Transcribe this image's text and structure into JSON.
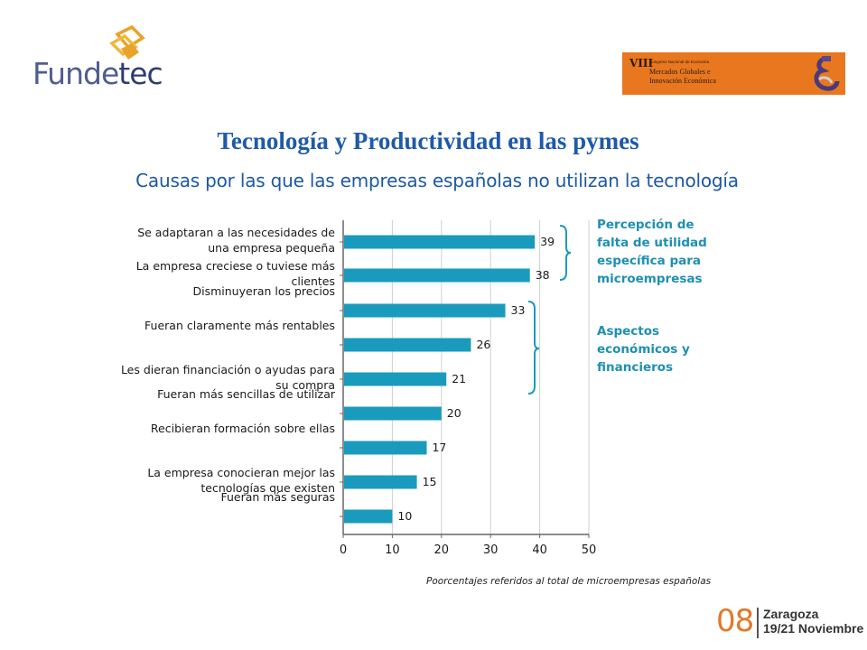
{
  "logo": {
    "text_a": "Funde",
    "text_b": "tec"
  },
  "congress": {
    "roman": "VIII",
    "small": "Congreso Nacional de Economía",
    "line1": "Mercados Globales e",
    "line2": "Innovación Económica"
  },
  "title": "Tecnología y Productividad en las pymes",
  "subtitle": "Causas por las que las empresas españolas no utilizan la tecnología",
  "chart_data": {
    "type": "bar",
    "orientation": "horizontal",
    "categories": [
      "Se adaptaran a las necesidades de una empresa pequeña",
      "La empresa creciese o tuviese más clientes",
      "Disminuyeran los precios",
      "Fueran claramente más rentables",
      "Les dieran financiación o ayudas para su compra",
      "Fueran más sencillas de utilizar",
      "Recibieran formación sobre ellas",
      "La empresa conocieran mejor las tecnologías que existen",
      "Fueran más seguras"
    ],
    "category_lines": [
      "Se adaptaran a las necesidades de\nuna empresa pequeña",
      "La empresa creciese o tuviese más\nclientes",
      "Disminuyeran los precios",
      "Fueran claramente más rentables",
      "Les dieran financiación o ayudas para\nsu compra",
      "Fueran más sencillas de utilizar",
      "Recibieran formación sobre ellas",
      "La empresa conocieran mejor las\ntecnologías que existen",
      "Fueran más seguras"
    ],
    "values": [
      39,
      38,
      33,
      26,
      21,
      20,
      17,
      15,
      10
    ],
    "xlim": [
      0,
      50
    ],
    "xticks": [
      "0",
      "10",
      "20",
      "30",
      "40",
      "50"
    ],
    "grid": true,
    "bar_color": "#1a9bbd",
    "groups": [
      {
        "label": "Percepción de\nfalta de utilidad\nespecífica para\nmicroempresas",
        "start": 0,
        "end": 1
      },
      {
        "label": "Aspectos\neconómicos y\nfinancieros",
        "start": 2,
        "end": 4
      }
    ],
    "note": "Poorcentajes referidos al total de microempresas españolas"
  },
  "footer": {
    "number": "08",
    "city": "Zaragoza",
    "dates": "19/21 Noviembre"
  }
}
